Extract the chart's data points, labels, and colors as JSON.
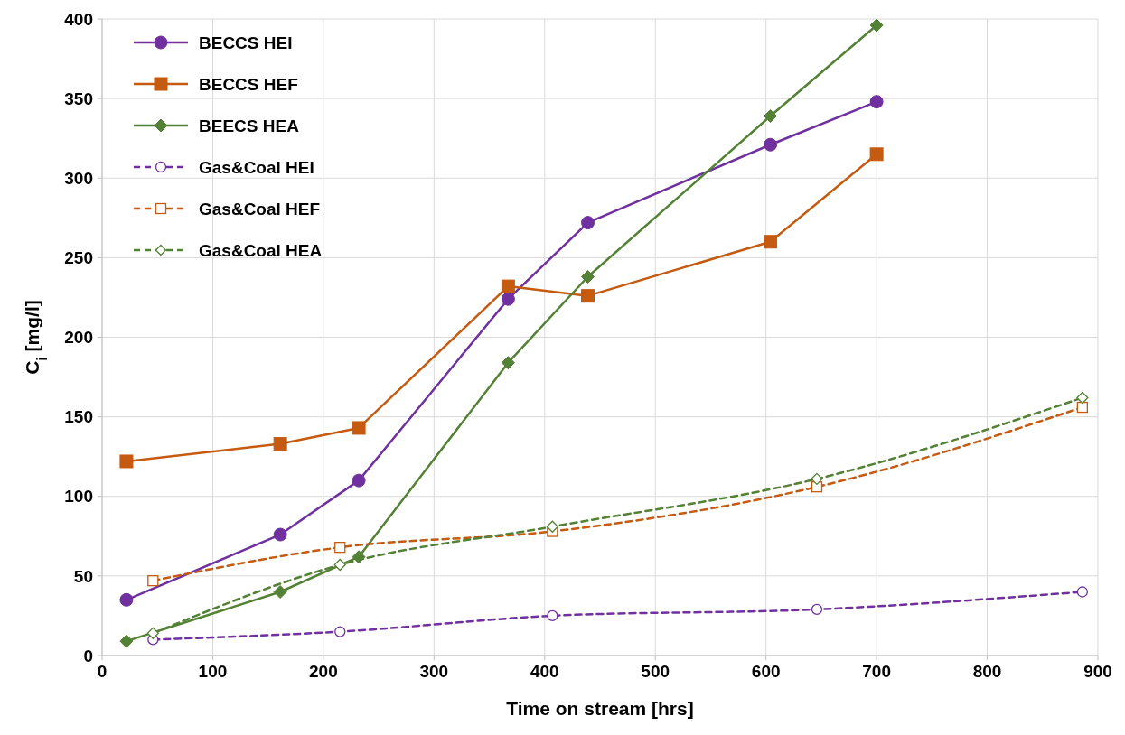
{
  "chart_data": {
    "type": "line",
    "xlabel": "Time on stream [hrs]",
    "ylabel": "C$_{i}$ [mg/l]",
    "xlim": [
      0,
      900
    ],
    "xticks": [
      0,
      100,
      200,
      300,
      400,
      500,
      600,
      700,
      800,
      900
    ],
    "ylim": [
      0,
      400
    ],
    "yticks": [
      0,
      50,
      100,
      150,
      200,
      250,
      300,
      350,
      400
    ],
    "grid": true,
    "legend": "top left",
    "series": [
      {
        "name": "BECCS HEI",
        "color": "#7030a0",
        "marker": "circle",
        "line_style": "solid",
        "x": [
          22,
          161,
          232,
          367,
          439,
          604,
          700
        ],
        "values": [
          35,
          76,
          110,
          224,
          272,
          321,
          348
        ]
      },
      {
        "name": "BECCS HEF",
        "color": "#c55a11",
        "marker": "square",
        "line_style": "solid",
        "x": [
          22,
          161,
          232,
          367,
          439,
          604,
          700
        ],
        "values": [
          122,
          133,
          143,
          232,
          226,
          260,
          315
        ]
      },
      {
        "name": "BEECS HEA",
        "color": "#548235",
        "marker": "diamond",
        "line_style": "solid",
        "x": [
          22,
          161,
          232,
          367,
          439,
          604,
          700
        ],
        "values": [
          9,
          40,
          62,
          184,
          238,
          339,
          396
        ]
      },
      {
        "name": "Gas&Coal HEI",
        "color": "#7030a0",
        "marker": "circle",
        "line_style": "dashed",
        "x": [
          46,
          215,
          407,
          646,
          886
        ],
        "values": [
          10,
          15,
          25,
          29,
          40
        ]
      },
      {
        "name": "Gas&Coal HEF",
        "color": "#c55a11",
        "marker": "square",
        "line_style": "dashed",
        "x": [
          46,
          215,
          407,
          646,
          886
        ],
        "values": [
          47,
          68,
          78,
          106,
          156
        ]
      },
      {
        "name": "Gas&Coal HEA",
        "color": "#548235",
        "marker": "diamond",
        "line_style": "dashed",
        "x": [
          46,
          215,
          407,
          646,
          886
        ],
        "values": [
          14,
          57,
          81,
          111,
          162
        ]
      }
    ]
  }
}
